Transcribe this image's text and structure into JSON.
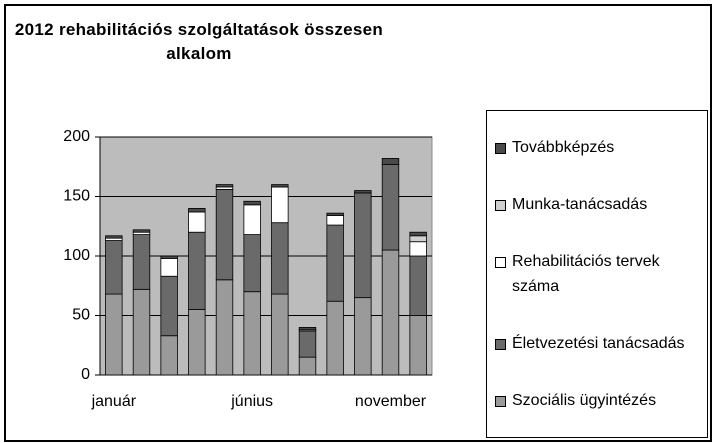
{
  "chart_data": {
    "type": "bar",
    "stacked": true,
    "title": "2012 rehabilitációs szolgáltatások összesen alkalom",
    "categories": [
      "január",
      null,
      null,
      null,
      null,
      "június",
      null,
      null,
      null,
      null,
      "november",
      null
    ],
    "series": [
      {
        "name": "Szociális ügyintézés",
        "color": "#9a9a9a",
        "values": [
          68,
          72,
          33,
          55,
          80,
          70,
          68,
          15,
          62,
          65,
          105,
          50
        ]
      },
      {
        "name": "Életvezetési tanácsadás",
        "color": "#6a6a6a",
        "values": [
          45,
          46,
          50,
          65,
          76,
          48,
          60,
          22,
          64,
          88,
          72,
          50
        ]
      },
      {
        "name": "Rehabilitációs tervek száma",
        "color": "#ffffff",
        "values": [
          2,
          2,
          15,
          17,
          2,
          25,
          30,
          1,
          8,
          0,
          0,
          12
        ]
      },
      {
        "name": "Munka-tanácsadás",
        "color": "#cfcfcf",
        "values": [
          0,
          0,
          0,
          0,
          0,
          0,
          0,
          0,
          0,
          0,
          0,
          5
        ]
      },
      {
        "name": "Továbbképzés",
        "color": "#4a4a4a",
        "values": [
          2,
          2,
          2,
          3,
          2,
          3,
          2,
          2,
          2,
          2,
          5,
          3
        ]
      }
    ],
    "ylim": [
      0,
      200
    ],
    "yticks": [
      0,
      50,
      100,
      150,
      200
    ],
    "grid": true
  }
}
